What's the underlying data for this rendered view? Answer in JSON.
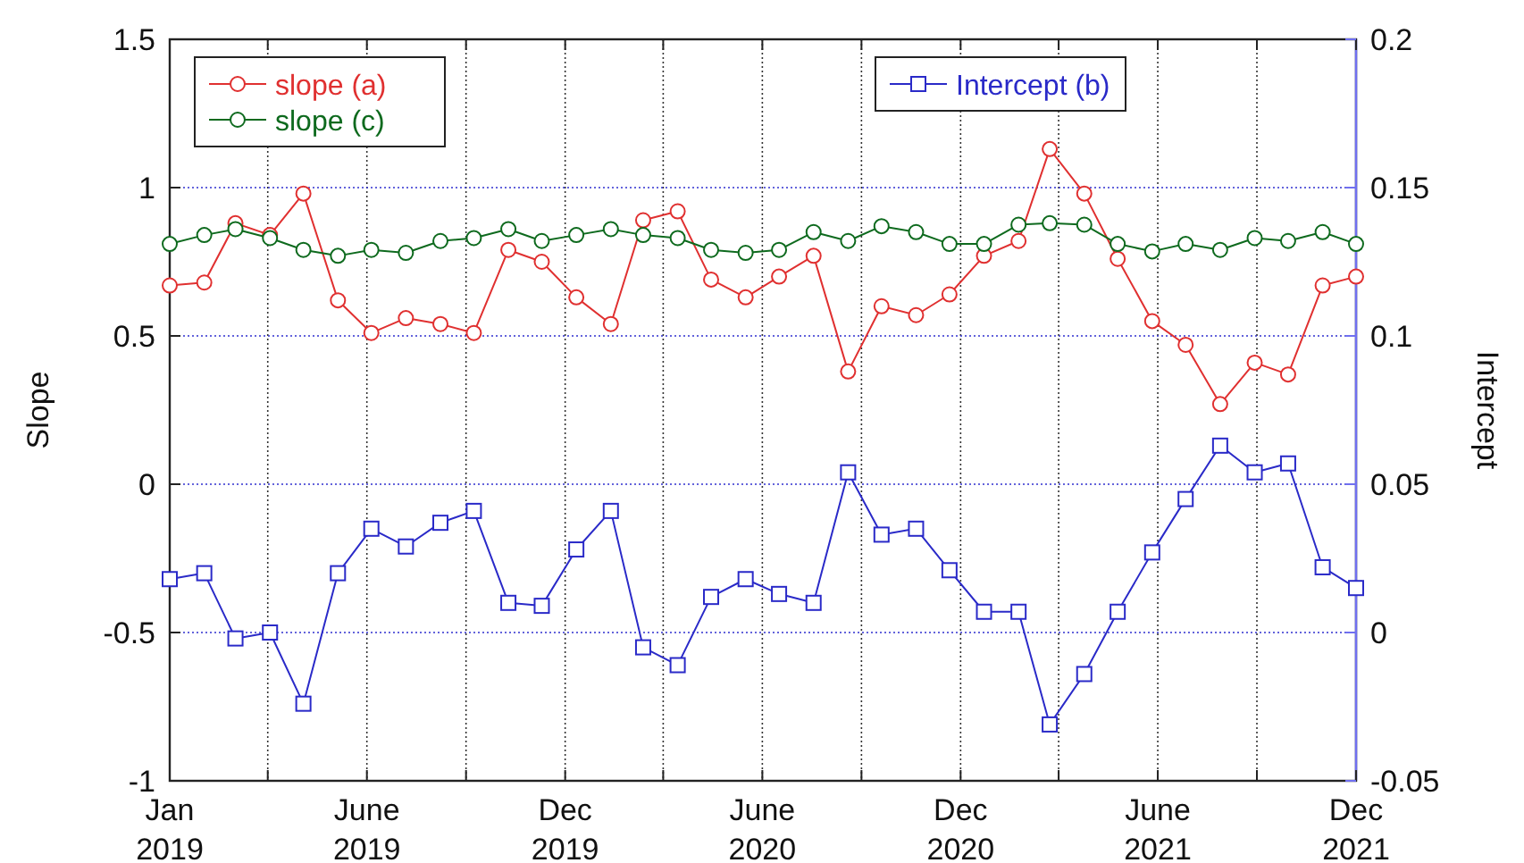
{
  "chart_data": {
    "type": "line",
    "xlabel": null,
    "ylabel": "Slope",
    "y2label": "Intercept",
    "x": [
      "2019-01",
      "2019-02",
      "2019-03",
      "2019-04",
      "2019-05",
      "2019-06",
      "2019-07",
      "2019-08",
      "2019-09",
      "2019-10",
      "2019-11",
      "2019-12",
      "2020-01",
      "2020-02",
      "2020-03",
      "2020-04",
      "2020-05",
      "2020-06",
      "2020-07",
      "2020-08",
      "2020-09",
      "2020-10",
      "2020-11",
      "2020-12",
      "2021-01",
      "2021-02",
      "2021-03",
      "2021-04",
      "2021-05",
      "2021-06",
      "2021-07",
      "2021-08",
      "2021-09",
      "2021-10",
      "2021-11",
      "2021-12"
    ],
    "xlim": [
      "2019-01",
      "2021-12"
    ],
    "xticks": [
      {
        "value": "2019-01-01",
        "label": "Jan\n2019"
      },
      {
        "value": "2019-03-30",
        "label": null
      },
      {
        "value": "2019-06-27",
        "label": "June\n2019"
      },
      {
        "value": "2019-09-24",
        "label": null
      },
      {
        "value": "2019-12-22",
        "label": "Dec\n2019"
      },
      {
        "value": "2020-03-19",
        "label": null
      },
      {
        "value": "2020-06-16",
        "label": "June\n2020"
      },
      {
        "value": "2020-09-13",
        "label": null
      },
      {
        "value": "2020-12-11",
        "label": "Dec\n2020"
      },
      {
        "value": "2021-03-09",
        "label": null
      },
      {
        "value": "2021-06-06",
        "label": "June\n2021"
      },
      {
        "value": "2021-09-03",
        "label": null
      },
      {
        "value": "2021-12-01",
        "label": "Dec\n2021"
      }
    ],
    "ylim": [
      -1,
      1.5
    ],
    "yticks": [
      -1,
      -0.5,
      0,
      0.5,
      1,
      1.5
    ],
    "y2lim": [
      -0.05,
      0.2
    ],
    "y2ticks": [
      -0.05,
      0,
      0.05,
      0.1,
      0.15,
      0.2
    ],
    "grid": true,
    "legend": "top left",
    "line_style": "solid",
    "series": [
      {
        "name": "slope (a)",
        "color": "#e03030",
        "marker": "circle",
        "values": [
          0.67,
          0.68,
          0.88,
          0.84,
          0.98,
          0.62,
          0.51,
          0.56,
          0.54,
          0.51,
          0.79,
          0.75,
          0.63,
          0.54,
          0.89,
          0.92,
          0.69,
          0.63,
          0.7,
          0.77,
          0.38,
          0.6,
          0.57,
          0.64,
          0.77,
          0.82,
          1.13,
          0.98,
          0.76,
          0.55,
          0.47,
          0.27,
          0.41,
          0.37,
          0.67,
          0.7
        ]
      },
      {
        "name": "slope (c)",
        "color": "#0e6a1e",
        "marker": "circle",
        "values": [
          0.81,
          0.84,
          0.86,
          0.83,
          0.79,
          0.77,
          0.79,
          0.78,
          0.82,
          0.83,
          0.86,
          0.82,
          0.84,
          0.86,
          0.84,
          0.83,
          0.79,
          0.78,
          0.79,
          0.85,
          0.82,
          0.87,
          0.85,
          0.81,
          0.81,
          0.875,
          0.88,
          0.875,
          0.81,
          0.785,
          0.81,
          0.79,
          0.83,
          0.82,
          0.85,
          0.81
        ]
      },
      {
        "name": "Intercept (b)",
        "color": "#2a2ac8",
        "marker": "square",
        "axis": "y2",
        "values": [
          0.018,
          0.02,
          -0.002,
          0.0,
          -0.024,
          0.02,
          0.035,
          0.029,
          0.037,
          0.041,
          0.01,
          0.009,
          0.028,
          0.041,
          -0.005,
          -0.011,
          0.012,
          0.018,
          0.013,
          0.01,
          0.054,
          0.033,
          0.035,
          0.021,
          0.007,
          0.007,
          -0.031,
          -0.014,
          0.007,
          0.027,
          0.045,
          0.063,
          0.054,
          0.057,
          0.022,
          0.015
        ]
      }
    ]
  }
}
